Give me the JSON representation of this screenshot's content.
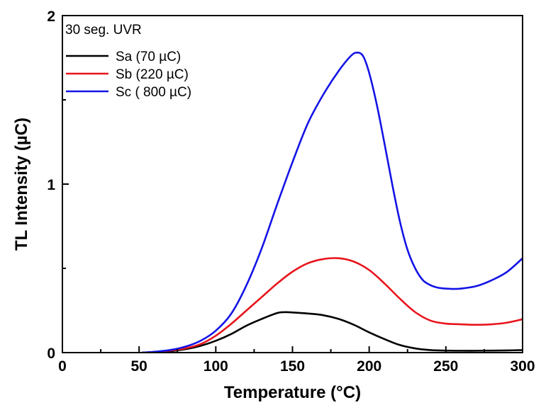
{
  "chart_data": {
    "type": "line",
    "title": "",
    "annotation": "30 seg. UVR",
    "xlabel": "Temperature (°C)",
    "ylabel": "TL Intensity (µC)",
    "xlim": [
      0,
      300
    ],
    "ylim": [
      0,
      2
    ],
    "x_ticks": [
      0,
      50,
      100,
      150,
      200,
      250,
      300
    ],
    "y_ticks": [
      0,
      1,
      2
    ],
    "x_tick_labels": [
      "0",
      "50",
      "100",
      "150",
      "200",
      "250",
      "300"
    ],
    "y_tick_labels": [
      "0",
      "1",
      "2"
    ],
    "grid": false,
    "legend_position": "top-left",
    "series": [
      {
        "name": "Sa (70 µC)",
        "color": "#000000",
        "x": [
          52,
          60,
          70,
          80,
          90,
          100,
          110,
          120,
          130,
          140,
          145,
          150,
          160,
          170,
          180,
          190,
          200,
          210,
          220,
          230,
          240,
          250,
          260,
          270,
          280,
          290,
          300
        ],
        "y": [
          0.0,
          0.003,
          0.008,
          0.02,
          0.04,
          0.07,
          0.11,
          0.16,
          0.2,
          0.235,
          0.24,
          0.238,
          0.232,
          0.222,
          0.2,
          0.165,
          0.12,
          0.08,
          0.045,
          0.025,
          0.015,
          0.012,
          0.011,
          0.011,
          0.012,
          0.013,
          0.015
        ]
      },
      {
        "name": "Sb (220 µC)",
        "color": "#e8141c",
        "x": [
          52,
          60,
          70,
          80,
          90,
          100,
          110,
          120,
          130,
          140,
          150,
          160,
          170,
          180,
          190,
          200,
          210,
          220,
          230,
          240,
          250,
          260,
          270,
          280,
          290,
          300
        ],
        "y": [
          0.0,
          0.004,
          0.012,
          0.025,
          0.05,
          0.1,
          0.17,
          0.25,
          0.33,
          0.41,
          0.48,
          0.53,
          0.555,
          0.56,
          0.54,
          0.49,
          0.41,
          0.32,
          0.24,
          0.19,
          0.172,
          0.168,
          0.165,
          0.168,
          0.178,
          0.198
        ]
      },
      {
        "name": "Sc ( 800 µC)",
        "color": "#1414e6",
        "x": [
          52,
          60,
          70,
          80,
          90,
          100,
          110,
          120,
          130,
          140,
          150,
          160,
          170,
          180,
          188,
          192,
          196,
          200,
          205,
          210,
          215,
          220,
          225,
          230,
          235,
          240,
          245,
          250,
          255,
          260,
          270,
          280,
          290,
          300
        ],
        "y": [
          0.0,
          0.005,
          0.015,
          0.035,
          0.07,
          0.13,
          0.23,
          0.4,
          0.62,
          0.88,
          1.13,
          1.36,
          1.53,
          1.67,
          1.76,
          1.78,
          1.76,
          1.66,
          1.47,
          1.24,
          1.0,
          0.78,
          0.61,
          0.5,
          0.43,
          0.4,
          0.385,
          0.38,
          0.378,
          0.38,
          0.395,
          0.43,
          0.48,
          0.56
        ]
      }
    ]
  }
}
